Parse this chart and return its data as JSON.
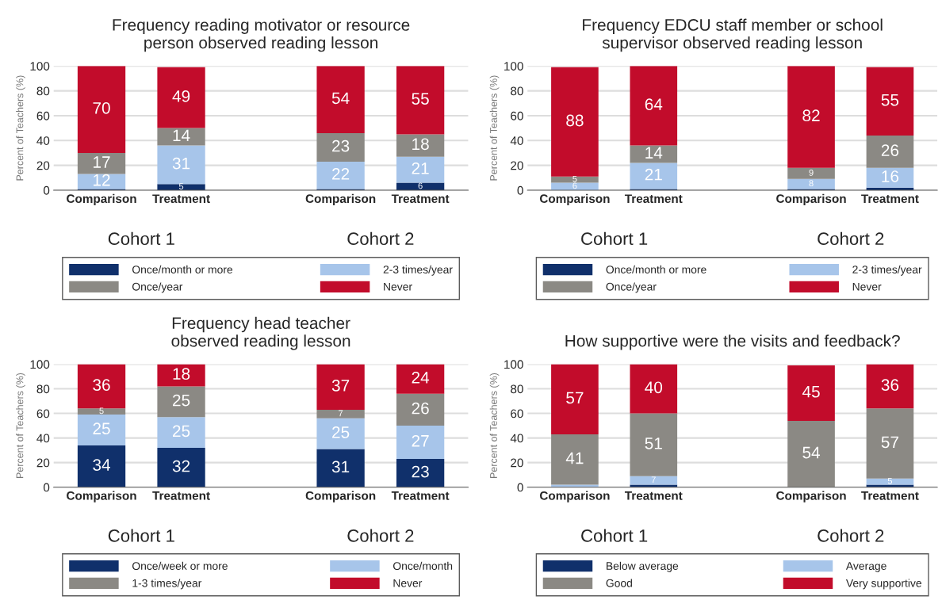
{
  "chart_data": [
    {
      "type": "bar",
      "stacked": true,
      "title": "Frequency reading motivator or resource\nperson observed reading lesson",
      "ylabel": "Percent of Teachers (%)",
      "categories": [
        "Comparison",
        "Treatment",
        null,
        "Comparison",
        "Treatment"
      ],
      "ylim": [
        0,
        100
      ],
      "yticks": [
        0,
        20,
        40,
        60,
        80,
        100
      ],
      "grid": "y",
      "legend": "bottom",
      "annotations": [
        "Cohort 1",
        "Cohort 2"
      ],
      "series": [
        {
          "name": "Once/month or more",
          "color": "#10306b",
          "values": [
            1,
            5,
            null,
            1,
            6
          ],
          "value_labels": [
            null,
            "5",
            null,
            null,
            "6"
          ]
        },
        {
          "name": "2-3 times/year",
          "color": "#a7c5ea",
          "values": [
            12,
            31,
            null,
            22,
            21
          ],
          "value_labels": [
            "12",
            "31",
            null,
            "22",
            "21"
          ]
        },
        {
          "name": "Once/year",
          "color": "#8b8984",
          "values": [
            17,
            14,
            null,
            23,
            18
          ],
          "value_labels": [
            "17",
            "14",
            null,
            "23",
            "18"
          ]
        },
        {
          "name": "Never",
          "color": "#c20c2b",
          "values": [
            70,
            49,
            null,
            54,
            55
          ],
          "value_labels": [
            "70",
            "49",
            null,
            "54",
            "55"
          ]
        }
      ]
    },
    {
      "type": "bar",
      "stacked": true,
      "title": "Frequency EDCU staff member or school\nsupervisor observed reading lesson",
      "ylabel": "Percent of Teachers (%)",
      "categories": [
        "Comparison",
        "Treatment",
        null,
        "Comparison",
        "Treatment"
      ],
      "ylim": [
        0,
        100
      ],
      "yticks": [
        0,
        20,
        40,
        60,
        80,
        100
      ],
      "grid": "y",
      "legend": "bottom",
      "annotations": [
        "Cohort 1",
        "Cohort 2"
      ],
      "series": [
        {
          "name": "Once/month or more",
          "color": "#10306b",
          "values": [
            null,
            1,
            null,
            1,
            2
          ],
          "value_labels": [
            null,
            null,
            null,
            null,
            null
          ]
        },
        {
          "name": "2-3 times/year",
          "color": "#a7c5ea",
          "values": [
            6,
            21,
            null,
            8,
            16
          ],
          "value_labels": [
            "6",
            "21",
            null,
            "8",
            "16"
          ]
        },
        {
          "name": "Once/year",
          "color": "#8b8984",
          "values": [
            5,
            14,
            null,
            9,
            26
          ],
          "value_labels": [
            "5",
            "14",
            null,
            "9",
            "26"
          ]
        },
        {
          "name": "Never",
          "color": "#c20c2b",
          "values": [
            88,
            64,
            null,
            82,
            55
          ],
          "value_labels": [
            "88",
            "64",
            null,
            "82",
            "55"
          ]
        }
      ]
    },
    {
      "type": "bar",
      "stacked": true,
      "title": "Frequency head teacher\nobserved reading lesson",
      "ylabel": "Percent of Teachers (%)",
      "categories": [
        "Comparison",
        "Treatment",
        null,
        "Comparison",
        "Treatment"
      ],
      "ylim": [
        0,
        100
      ],
      "yticks": [
        0,
        20,
        40,
        60,
        80,
        100
      ],
      "grid": "y",
      "legend": "bottom",
      "annotations": [
        "Cohort 1",
        "Cohort 2"
      ],
      "series": [
        {
          "name": "Once/week or more",
          "color": "#10306b",
          "values": [
            34,
            32,
            null,
            31,
            23
          ],
          "value_labels": [
            "34",
            "32",
            null,
            "31",
            "23"
          ]
        },
        {
          "name": "Once/month",
          "color": "#a7c5ea",
          "values": [
            25,
            25,
            null,
            25,
            27
          ],
          "value_labels": [
            "25",
            "25",
            null,
            "25",
            "27"
          ]
        },
        {
          "name": "1-3 times/year",
          "color": "#8b8984",
          "values": [
            5,
            25,
            null,
            7,
            26
          ],
          "value_labels": [
            "5",
            "25",
            null,
            "7",
            "26"
          ]
        },
        {
          "name": "Never",
          "color": "#c20c2b",
          "values": [
            36,
            18,
            null,
            37,
            24
          ],
          "value_labels": [
            "36",
            "18",
            null,
            "37",
            "24"
          ]
        }
      ]
    },
    {
      "type": "bar",
      "stacked": true,
      "title": "How supportive were the visits and feedback?",
      "ylabel": "Percent of Teachers (%)",
      "categories": [
        "Comparison",
        "Treatment",
        null,
        "Comparison",
        "Treatment"
      ],
      "ylim": [
        0,
        100
      ],
      "yticks": [
        0,
        20,
        40,
        60,
        80,
        100
      ],
      "grid": "y",
      "legend": "bottom",
      "annotations": [
        "Cohort 1",
        "Cohort 2"
      ],
      "series": [
        {
          "name": "Below average",
          "color": "#10306b",
          "values": [
            0,
            2,
            null,
            0,
            2
          ],
          "value_labels": [
            null,
            null,
            null,
            null,
            null
          ]
        },
        {
          "name": "Average",
          "color": "#a7c5ea",
          "values": [
            2,
            7,
            null,
            0,
            5
          ],
          "value_labels": [
            null,
            "7",
            null,
            null,
            "5"
          ]
        },
        {
          "name": "Good",
          "color": "#8b8984",
          "values": [
            41,
            51,
            null,
            54,
            57
          ],
          "value_labels": [
            "41",
            "51",
            null,
            "54",
            "57"
          ]
        },
        {
          "name": "Very supportive",
          "color": "#c20c2b",
          "values": [
            57,
            40,
            null,
            45,
            36
          ],
          "value_labels": [
            "57",
            "40",
            null,
            "45",
            "36"
          ]
        }
      ]
    }
  ]
}
